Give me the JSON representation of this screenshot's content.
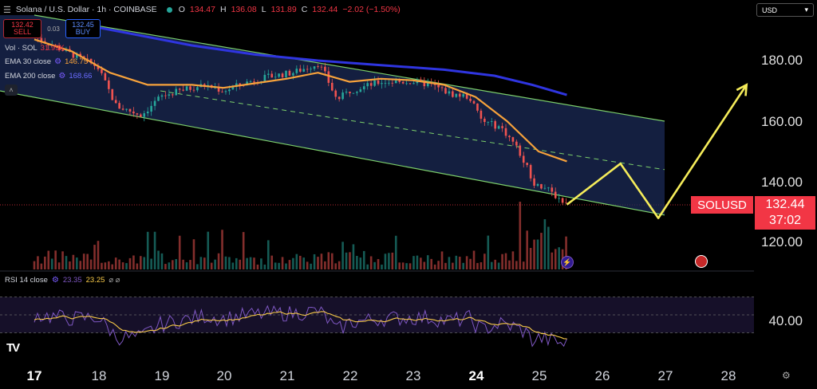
{
  "header": {
    "title": "Solana / U.S. Dollar · 1h · COINBASE",
    "open_label": "O",
    "open": "134.47",
    "high_label": "H",
    "high": "136.08",
    "low_label": "L",
    "low": "131.89",
    "close_label": "C",
    "close": "132.44",
    "change": "−2.02 (−1.50%)"
  },
  "trade": {
    "sell_price": "132.42",
    "sell_label": "SELL",
    "spread": "0.03",
    "buy_price": "132.45",
    "buy_label": "BUY"
  },
  "indicators": {
    "volume": {
      "label": "Vol · SOL",
      "value": "31.99K"
    },
    "ema30": {
      "label": "EMA 30 close",
      "value": "146.75"
    },
    "ema200": {
      "label": "EMA 200 close",
      "value": "168.66"
    },
    "rsi": {
      "label": "RSI 14 close",
      "value": "23.35",
      "signal": "23.25",
      "icons": "⌀ ⌀"
    }
  },
  "currency_select": {
    "value": "USD"
  },
  "price_tag": {
    "symbol": "SOLUSD",
    "price": "132.44",
    "countdown": "37:02"
  },
  "y_axis": {
    "ticks": [
      "180.00",
      "160.00",
      "140.00",
      "120.00"
    ],
    "rsi_tick": "40.00"
  },
  "x_axis": {
    "ticks": [
      "17",
      "18",
      "19",
      "20",
      "21",
      "22",
      "23",
      "24",
      "25",
      "26",
      "27",
      "28"
    ]
  },
  "colors": {
    "up": "#26a69a",
    "down": "#ef5350",
    "ema30": "#f7a23b",
    "ema200": "#2f35e0",
    "channel": "#7ccf6b",
    "projection": "#f5ec5a",
    "rsi": "#7e57c2",
    "rsi_ma": "#f7c948"
  },
  "chart_data": {
    "type": "candlestick",
    "symbol": "SOLUSD",
    "x_dates": [
      "17",
      "18",
      "19",
      "20",
      "21",
      "22",
      "23",
      "24",
      "25",
      "26",
      "27",
      "28"
    ],
    "price_anchors": [
      {
        "day": 17.0,
        "price": 188
      },
      {
        "day": 17.5,
        "price": 183
      },
      {
        "day": 18.0,
        "price": 178
      },
      {
        "day": 18.3,
        "price": 165
      },
      {
        "day": 18.7,
        "price": 162
      },
      {
        "day": 19.0,
        "price": 168
      },
      {
        "day": 19.3,
        "price": 170
      },
      {
        "day": 19.7,
        "price": 172
      },
      {
        "day": 20.0,
        "price": 170
      },
      {
        "day": 20.4,
        "price": 173
      },
      {
        "day": 20.8,
        "price": 175
      },
      {
        "day": 21.1,
        "price": 176
      },
      {
        "day": 21.5,
        "price": 179
      },
      {
        "day": 21.6,
        "price": 176
      },
      {
        "day": 21.8,
        "price": 167
      },
      {
        "day": 22.0,
        "price": 170
      },
      {
        "day": 22.5,
        "price": 173
      },
      {
        "day": 23.0,
        "price": 173
      },
      {
        "day": 23.3,
        "price": 172
      },
      {
        "day": 23.6,
        "price": 169
      },
      {
        "day": 23.9,
        "price": 168
      },
      {
        "day": 24.1,
        "price": 160
      },
      {
        "day": 24.4,
        "price": 158
      },
      {
        "day": 24.6,
        "price": 153
      },
      {
        "day": 24.8,
        "price": 146
      },
      {
        "day": 24.9,
        "price": 140
      },
      {
        "day": 25.1,
        "price": 138
      },
      {
        "day": 25.3,
        "price": 135
      },
      {
        "day": 25.45,
        "price": 132.44
      }
    ],
    "ema30_anchors": [
      {
        "day": 17.0,
        "price": 187
      },
      {
        "day": 17.6,
        "price": 183
      },
      {
        "day": 18.2,
        "price": 176
      },
      {
        "day": 18.8,
        "price": 172
      },
      {
        "day": 19.5,
        "price": 172
      },
      {
        "day": 20.0,
        "price": 171
      },
      {
        "day": 20.5,
        "price": 172.5
      },
      {
        "day": 21.0,
        "price": 174
      },
      {
        "day": 21.5,
        "price": 176
      },
      {
        "day": 22.0,
        "price": 173
      },
      {
        "day": 22.5,
        "price": 174
      },
      {
        "day": 23.0,
        "price": 173.5
      },
      {
        "day": 23.5,
        "price": 172
      },
      {
        "day": 24.0,
        "price": 168
      },
      {
        "day": 24.5,
        "price": 160
      },
      {
        "day": 25.0,
        "price": 150
      },
      {
        "day": 25.45,
        "price": 146.75
      }
    ],
    "ema200_anchors": [
      {
        "day": 17.5,
        "price": 193
      },
      {
        "day": 18.5,
        "price": 189
      },
      {
        "day": 19.5,
        "price": 185
      },
      {
        "day": 20.5,
        "price": 182
      },
      {
        "day": 21.5,
        "price": 180
      },
      {
        "day": 22.5,
        "price": 178.5
      },
      {
        "day": 23.5,
        "price": 177
      },
      {
        "day": 24.3,
        "price": 175
      },
      {
        "day": 24.9,
        "price": 172
      },
      {
        "day": 25.45,
        "price": 168.66
      }
    ],
    "channel": {
      "upper": [
        {
          "day": 17.0,
          "price": 195
        },
        {
          "day": 27.0,
          "price": 160
        }
      ],
      "lower": [
        {
          "day": 16.5,
          "price": 170
        },
        {
          "day": 27.0,
          "price": 129
        }
      ],
      "mid": [
        {
          "day": 19.0,
          "price": 170
        },
        {
          "day": 27.0,
          "price": 144
        }
      ]
    },
    "projection": [
      {
        "day": 25.45,
        "price": 132.44
      },
      {
        "day": 26.3,
        "price": 146
      },
      {
        "day": 26.9,
        "price": 128
      },
      {
        "day": 28.3,
        "price": 172
      }
    ],
    "last_price": 132.44,
    "ylim": [
      112,
      198
    ],
    "rsi": {
      "last": 23.35,
      "signal": 23.25,
      "ylim": [
        10,
        90
      ],
      "bands": [
        30,
        50,
        70
      ]
    }
  }
}
